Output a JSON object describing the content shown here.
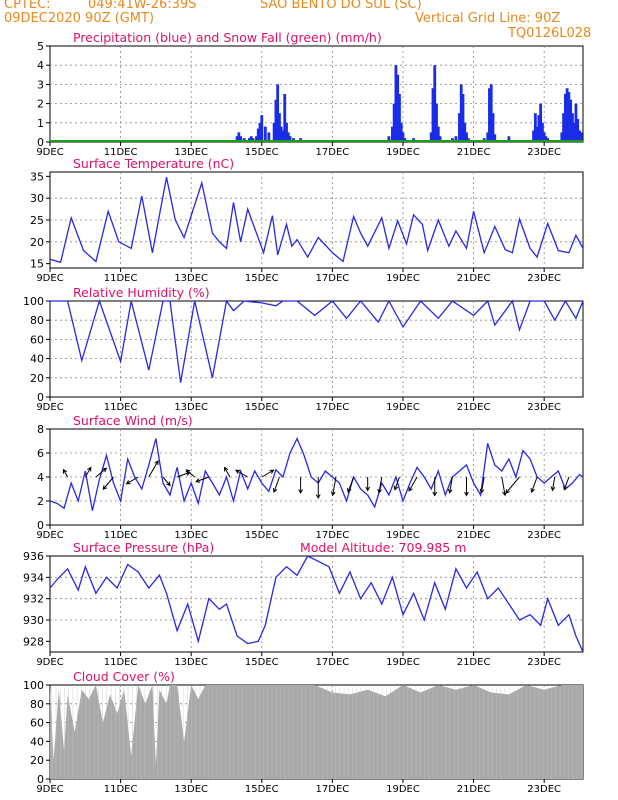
{
  "header": {
    "line1_left": "CPTEC:",
    "coords": "049:41W-26:39S",
    "location": "SAO BENTO DO SUL (SC)",
    "line2_left": "09DEC2020 90Z (GMT)",
    "gridline_note": "Vertical Grid Line: 90Z",
    "code": "TQ0126L028"
  },
  "colors": {
    "header": "#e8891e",
    "title": "#e0106a",
    "line": "#2828e8",
    "precip": "#1a2ce8",
    "snow": "#18a018",
    "cloud": "#a9a9a9",
    "grid": "#8a8a8a"
  },
  "x_tick_labels": [
    "9DEC",
    "11DEC",
    "13DEC",
    "15DEC",
    "17DEC",
    "19DEC",
    "21DEC",
    "23DEC"
  ],
  "chart_data": [
    {
      "id": "precip",
      "type": "bar",
      "title": "Precipitation (blue) and Snow Fall (green) (mm/h)",
      "ylim": [
        0,
        5
      ],
      "yticks": [
        "0",
        "1",
        "2",
        "3",
        "4",
        "5"
      ],
      "x_unit": "days since 09DEC2020 00Z",
      "xlim": [
        0,
        15.1
      ],
      "series": [
        {
          "name": "Precipitation",
          "x": [
            0.4,
            2.6,
            3.6,
            5.3,
            5.35,
            5.4,
            5.5,
            5.55,
            5.6,
            5.65,
            5.7,
            5.75,
            5.8,
            5.85,
            5.9,
            5.95,
            6.0,
            6.1,
            6.2,
            6.3,
            6.35,
            6.4,
            6.45,
            6.5,
            6.55,
            6.6,
            6.65,
            6.7,
            6.75,
            6.8,
            6.9,
            7.0,
            7.1,
            7.2,
            9.6,
            9.7,
            9.75,
            9.8,
            9.85,
            9.9,
            9.95,
            10.0,
            10.05,
            10.3,
            10.8,
            10.85,
            10.9,
            10.95,
            11.0,
            11.05,
            11.4,
            11.5,
            11.6,
            11.65,
            11.7,
            11.75,
            11.8,
            11.85,
            12.0,
            12.3,
            12.4,
            12.45,
            12.5,
            12.55,
            12.6,
            12.9,
            13.0,
            13.7,
            13.75,
            13.8,
            13.85,
            13.9,
            13.95,
            14.0,
            14.05,
            14.1,
            14.5,
            14.55,
            14.6,
            14.65,
            14.7,
            14.75,
            14.8,
            14.85,
            14.9,
            14.95,
            15.0,
            15.05
          ],
          "values": [
            0.1,
            0.1,
            0.1,
            0.3,
            0.5,
            0.3,
            0.2,
            0.1,
            0.1,
            0.2,
            0.3,
            0.2,
            0.1,
            0.3,
            0.7,
            1.0,
            1.4,
            0.8,
            0.5,
            0.1,
            1.0,
            2.2,
            3.0,
            1.5,
            0.8,
            0.6,
            2.5,
            1.0,
            0.5,
            0.3,
            0.2,
            0.1,
            0.2,
            0.1,
            0.3,
            0.8,
            2.0,
            4.0,
            3.5,
            2.5,
            1.0,
            0.5,
            0.2,
            0.2,
            0.5,
            2.8,
            4.0,
            2.0,
            0.8,
            0.3,
            0.2,
            0.3,
            1.5,
            3.0,
            2.5,
            1.0,
            0.5,
            0.2,
            0.1,
            0.2,
            0.5,
            2.8,
            3.0,
            1.5,
            0.4,
            0.1,
            0.3,
            0.6,
            1.5,
            0.8,
            1.4,
            2.0,
            1.0,
            0.5,
            0.3,
            0.2,
            0.5,
            1.5,
            2.5,
            2.8,
            2.6,
            2.2,
            1.5,
            1.0,
            2.0,
            1.2,
            0.6,
            0.5
          ]
        },
        {
          "name": "Snow Fall",
          "x": [
            0,
            15.1
          ],
          "values": [
            0,
            0
          ]
        }
      ]
    },
    {
      "id": "temp",
      "type": "line",
      "title": "Surface Temperature (nC)",
      "ylim": [
        14,
        36
      ],
      "yticks": [
        "15",
        "20",
        "25",
        "30",
        "35"
      ],
      "x": [
        0,
        0.3,
        0.6,
        0.95,
        1.3,
        1.65,
        1.95,
        2.3,
        2.6,
        2.9,
        3.3,
        3.55,
        3.8,
        4.3,
        4.6,
        4.8,
        5.0,
        5.2,
        5.4,
        5.6,
        6.05,
        6.3,
        6.45,
        6.7,
        6.85,
        7.0,
        7.3,
        7.6,
        8.0,
        8.3,
        8.6,
        8.8,
        9.0,
        9.4,
        9.6,
        9.85,
        10.1,
        10.3,
        10.55,
        10.7,
        11.0,
        11.3,
        11.5,
        11.8,
        12.0,
        12.3,
        12.6,
        12.9,
        13.1,
        13.3,
        13.6,
        13.8,
        14.1,
        14.4,
        14.7,
        14.9,
        15.1
      ],
      "values": [
        16,
        15.3,
        25.5,
        18,
        15.5,
        27,
        20,
        18.5,
        30.5,
        17.5,
        34.8,
        25,
        21,
        33.5,
        22,
        20,
        18.5,
        29,
        20,
        27.5,
        17.5,
        26,
        17,
        24,
        19,
        20.5,
        16.5,
        21,
        17.5,
        15.5,
        25.8,
        22,
        19,
        25.5,
        18.5,
        24.8,
        19.5,
        26.2,
        24,
        18,
        25,
        19,
        22.5,
        18.5,
        27,
        17.5,
        23.5,
        18.2,
        17.5,
        25.2,
        18.5,
        16.5,
        24.2,
        18,
        17.5,
        21.5,
        18.5
      ]
    },
    {
      "id": "humidity",
      "type": "line",
      "title": "Relative Humidity (%)",
      "ylim": [
        0,
        100
      ],
      "yticks": [
        "0",
        "20",
        "40",
        "60",
        "80",
        "100"
      ],
      "x": [
        0,
        0.5,
        0.9,
        1.4,
        2.0,
        2.3,
        2.8,
        3.2,
        3.4,
        3.7,
        4.1,
        4.6,
        5.0,
        5.2,
        5.5,
        6.0,
        6.4,
        6.6,
        7.0,
        7.5,
        8.0,
        8.4,
        8.8,
        9.3,
        9.6,
        10.0,
        10.5,
        11.0,
        11.4,
        12.0,
        12.4,
        12.6,
        13.1,
        13.3,
        13.6,
        14.0,
        14.3,
        14.6,
        14.9,
        15.1
      ],
      "values": [
        100,
        100,
        38,
        100,
        37,
        100,
        28,
        100,
        100,
        15,
        100,
        20,
        100,
        90,
        100,
        98,
        95,
        100,
        100,
        85,
        100,
        82,
        100,
        78,
        100,
        73,
        100,
        82,
        100,
        85,
        100,
        75,
        100,
        70,
        100,
        100,
        80,
        100,
        82,
        100
      ],
      "x_detail_note": ""
    },
    {
      "id": "wind",
      "type": "line",
      "title": "Surface Wind (m/s)",
      "ylim": [
        0,
        8
      ],
      "yticks": [
        "0",
        "2",
        "4",
        "6",
        "8"
      ],
      "x": [
        0,
        0.2,
        0.4,
        0.6,
        0.8,
        1.0,
        1.2,
        1.4,
        1.6,
        1.8,
        2.0,
        2.2,
        2.4,
        2.6,
        2.8,
        3.0,
        3.2,
        3.4,
        3.6,
        3.8,
        4.0,
        4.2,
        4.4,
        4.6,
        4.8,
        5.0,
        5.2,
        5.4,
        5.6,
        5.8,
        6.0,
        6.2,
        6.4,
        6.6,
        6.8,
        7.0,
        7.2,
        7.4,
        7.6,
        7.8,
        8.0,
        8.2,
        8.4,
        8.6,
        8.8,
        9.0,
        9.2,
        9.4,
        9.6,
        9.8,
        10.0,
        10.2,
        10.4,
        10.6,
        10.8,
        11.0,
        11.2,
        11.4,
        11.6,
        11.8,
        12.0,
        12.2,
        12.4,
        12.6,
        12.8,
        13.0,
        13.2,
        13.4,
        13.6,
        13.8,
        14.0,
        14.2,
        14.4,
        14.6,
        14.8,
        15.0,
        15.1
      ],
      "values": [
        2.0,
        1.8,
        1.4,
        3.5,
        2.0,
        4.5,
        1.2,
        3.8,
        5.8,
        3.5,
        2.0,
        5.5,
        4.0,
        3.0,
        5.0,
        7.2,
        3.5,
        2.5,
        4.8,
        2.0,
        3.5,
        1.8,
        4.5,
        3.5,
        2.5,
        4.0,
        2.0,
        4.5,
        3.0,
        4.5,
        3.5,
        2.8,
        4.6,
        4.0,
        6.0,
        7.2,
        5.8,
        4.0,
        3.5,
        4.5,
        4.0,
        3.5,
        2.0,
        4.0,
        3.0,
        2.5,
        1.5,
        3.5,
        2.5,
        4.0,
        2.0,
        3.5,
        4.8,
        4.0,
        3.0,
        4.5,
        2.5,
        4.0,
        4.5,
        5.0,
        3.5,
        2.5,
        6.8,
        5.0,
        4.5,
        5.5,
        4.0,
        6.2,
        5.5,
        4.0,
        3.5,
        4.0,
        4.5,
        3.0,
        3.5,
        4.2,
        4.0
      ]
    },
    {
      "id": "pressure",
      "type": "line",
      "title": "Surface Pressure (hPa)",
      "subtitle": "Model Altitude: 709.985 m",
      "ylim": [
        927,
        936
      ],
      "yticks": [
        "928",
        "930",
        "932",
        "934",
        "936"
      ],
      "x": [
        0,
        0.2,
        0.5,
        0.8,
        1.0,
        1.3,
        1.6,
        1.9,
        2.2,
        2.5,
        2.8,
        3.1,
        3.3,
        3.6,
        3.9,
        4.2,
        4.5,
        4.8,
        5.0,
        5.3,
        5.6,
        5.9,
        6.1,
        6.4,
        6.7,
        7.0,
        7.3,
        7.6,
        7.9,
        8.2,
        8.5,
        8.8,
        9.1,
        9.4,
        9.7,
        10.0,
        10.3,
        10.6,
        10.9,
        11.2,
        11.5,
        11.8,
        12.1,
        12.4,
        12.7,
        13.0,
        13.3,
        13.6,
        13.9,
        14.1,
        14.4,
        14.7,
        14.9,
        15.1
      ],
      "values": [
        933.0,
        933.8,
        934.8,
        932.8,
        935.0,
        932.5,
        934.0,
        933.0,
        935.2,
        934.5,
        933.0,
        934.2,
        932.5,
        929.0,
        931.5,
        928.0,
        932.0,
        931.0,
        931.5,
        928.5,
        927.8,
        928.0,
        929.5,
        934.0,
        935.0,
        934.2,
        936.0,
        935.5,
        935.0,
        932.5,
        934.5,
        932.0,
        933.5,
        931.5,
        934.0,
        930.5,
        932.5,
        930.0,
        933.5,
        931.0,
        934.8,
        933.0,
        934.5,
        932.0,
        933.0,
        931.5,
        930.0,
        930.5,
        929.5,
        932.0,
        929.5,
        930.5,
        928.5,
        927.0
      ]
    },
    {
      "id": "cloud",
      "type": "area",
      "title": "Cloud Cover (%)",
      "ylim": [
        0,
        100
      ],
      "yticks": [
        "0",
        "20",
        "40",
        "60",
        "80",
        "100"
      ],
      "x": [
        0,
        0.1,
        0.25,
        0.4,
        0.5,
        0.7,
        0.9,
        1.1,
        1.3,
        1.5,
        1.7,
        1.9,
        2.1,
        2.3,
        2.5,
        2.7,
        2.9,
        3.0,
        3.1,
        3.3,
        3.4,
        3.6,
        3.8,
        4.0,
        4.2,
        4.4,
        4.6,
        4.8,
        5.0,
        5.2,
        5.5,
        6.0,
        6.5,
        7.0,
        7.5,
        8.0,
        8.5,
        9.0,
        9.5,
        10.0,
        10.5,
        11.0,
        11.5,
        12.0,
        12.5,
        13.0,
        13.5,
        14.0,
        14.5,
        15.0,
        15.1
      ],
      "values": [
        100,
        20,
        95,
        30,
        90,
        50,
        95,
        85,
        100,
        60,
        90,
        70,
        95,
        25,
        100,
        80,
        100,
        15,
        95,
        80,
        100,
        100,
        40,
        100,
        85,
        100,
        100,
        100,
        100,
        100,
        100,
        100,
        100,
        100,
        100,
        92,
        90,
        95,
        88,
        100,
        92,
        100,
        95,
        100,
        92,
        90,
        100,
        95,
        100,
        100,
        100
      ]
    }
  ],
  "wind_barbs": {
    "x": [
      0.5,
      1.0,
      1.3,
      1.8,
      2.5,
      2.8,
      3.2,
      3.6,
      4.1,
      4.5,
      5.1,
      5.6,
      6.0,
      6.5,
      7.1,
      7.6,
      8.1,
      8.6,
      9.0,
      9.4,
      9.9,
      10.4,
      10.9,
      11.4,
      11.8,
      12.3,
      12.8,
      13.3,
      13.8,
      14.3,
      14.7
    ],
    "speed": [
      1,
      2,
      3,
      4,
      3,
      5,
      2,
      3,
      2,
      3,
      2,
      3,
      3,
      4,
      4,
      6,
      5,
      4,
      3,
      4,
      3,
      4,
      5,
      4,
      5,
      4,
      5,
      6,
      4,
      3,
      3
    ],
    "dir_deg": [
      120,
      60,
      40,
      230,
      210,
      60,
      310,
      20,
      140,
      200,
      120,
      150,
      30,
      250,
      270,
      270,
      260,
      250,
      270,
      260,
      250,
      240,
      270,
      260,
      270,
      260,
      280,
      230,
      250,
      260,
      250
    ]
  }
}
